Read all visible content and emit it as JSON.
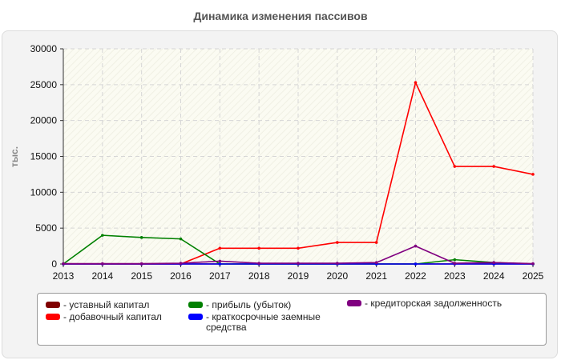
{
  "chart_data": {
    "type": "line",
    "title": "Динамика изменения пассивов",
    "ylabel": "тыс.",
    "xlabel": "",
    "x": [
      "2013",
      "2014",
      "2015",
      "2016",
      "2017",
      "2018",
      "2019",
      "2020",
      "2021",
      "2022",
      "2023",
      "2024",
      "2025"
    ],
    "ylim": [
      0,
      30000
    ],
    "yticks": [
      "0",
      "5000",
      "10000",
      "15000",
      "20000",
      "25000",
      "30000"
    ],
    "grid": true,
    "legend_position": "bottom",
    "series": [
      {
        "name": "- уставный капитал",
        "color": "#800000",
        "values": [
          10,
          10,
          10,
          10,
          10,
          10,
          10,
          10,
          10,
          10,
          10,
          10,
          10
        ]
      },
      {
        "name": "- добавочный капитал",
        "color": "#ff0000",
        "values": [
          0,
          0,
          0,
          0,
          2200,
          2200,
          2200,
          3000,
          3000,
          25300,
          13600,
          13600,
          12500
        ]
      },
      {
        "name": "- прибыль (убыток)",
        "color": "#008000",
        "values": [
          0,
          4000,
          3700,
          3500,
          0,
          0,
          0,
          0,
          0,
          0,
          600,
          200,
          0
        ]
      },
      {
        "name": "- краткосрочные заемные средства",
        "color": "#0000ff",
        "values": [
          0,
          0,
          0,
          0,
          0,
          0,
          0,
          0,
          0,
          0,
          0,
          0,
          0
        ]
      },
      {
        "name": "- кредиторская задолженность",
        "color": "#800080",
        "values": [
          50,
          50,
          50,
          100,
          400,
          100,
          100,
          100,
          200,
          2500,
          100,
          200,
          50
        ]
      }
    ]
  }
}
